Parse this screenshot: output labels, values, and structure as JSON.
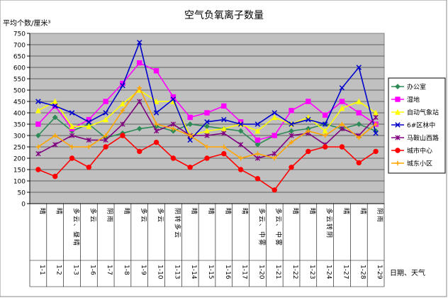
{
  "chart_data": {
    "type": "line",
    "title": "空气负氧离子数量",
    "ylabel": "平均个数/厘米³",
    "xlabel": "日期、天气",
    "ylim": [
      0,
      750
    ],
    "yticks": [
      0,
      50,
      100,
      150,
      200,
      250,
      300,
      350,
      400,
      450,
      500,
      550,
      600,
      650,
      700,
      750
    ],
    "grid": true,
    "legend_position": "right",
    "categories": [
      {
        "date": "1-1",
        "weather": "晴"
      },
      {
        "date": "1-2",
        "weather": "晴"
      },
      {
        "date": "1-3",
        "weather": "多云、昼晴"
      },
      {
        "date": "1-6",
        "weather": "多云"
      },
      {
        "date": "1-7",
        "weather": "阴雨"
      },
      {
        "date": "1-8",
        "weather": "晴"
      },
      {
        "date": "1-9",
        "weather": "多云"
      },
      {
        "date": "1-10",
        "weather": "多云"
      },
      {
        "date": "1-13",
        "weather": "阴转多云"
      },
      {
        "date": "1-14",
        "weather": "晴"
      },
      {
        "date": "1-15",
        "weather": "晴"
      },
      {
        "date": "1-16",
        "weather": "晴"
      },
      {
        "date": "1-17",
        "weather": "晴"
      },
      {
        "date": "1-20",
        "weather": "多云、中雾"
      },
      {
        "date": "1-21",
        "weather": "多云、中雾"
      },
      {
        "date": "1-22",
        "weather": "晴"
      },
      {
        "date": "1-23",
        "weather": "晴"
      },
      {
        "date": "1-24",
        "weather": "多云转阴"
      },
      {
        "date": "1-27",
        "weather": "晴"
      },
      {
        "date": "1-28",
        "weather": "晴"
      },
      {
        "date": "1-29",
        "weather": "阴雨"
      }
    ],
    "series": [
      {
        "name": "办公室",
        "color": "#2e8b57",
        "marker": "diamond",
        "values": [
          300,
          380,
          320,
          350,
          290,
          310,
          330,
          340,
          320,
          350,
          340,
          330,
          320,
          260,
          300,
          320,
          330,
          350,
          330,
          350,
          320
        ]
      },
      {
        "name": "湿地",
        "color": "#ff00ff",
        "marker": "square",
        "values": [
          350,
          430,
          330,
          370,
          450,
          530,
          620,
          585,
          470,
          380,
          400,
          430,
          360,
          280,
          300,
          410,
          450,
          390,
          450,
          400,
          350
        ]
      },
      {
        "name": "自动气象站",
        "color": "#ffff00",
        "marker": "triangle",
        "values": [
          410,
          450,
          340,
          340,
          370,
          440,
          500,
          450,
          450,
          300,
          320,
          330,
          350,
          320,
          380,
          350,
          380,
          320,
          420,
          450,
          400
        ]
      },
      {
        "name": "6#区林中",
        "color": "#0000cc",
        "marker": "x",
        "values": [
          450,
          430,
          400,
          360,
          400,
          520,
          710,
          400,
          460,
          280,
          360,
          370,
          350,
          350,
          400,
          350,
          370,
          350,
          510,
          600,
          310
        ]
      },
      {
        "name": "马鞍山西路",
        "color": "#800080",
        "marker": "star",
        "values": [
          220,
          260,
          300,
          280,
          280,
          350,
          450,
          320,
          350,
          300,
          300,
          310,
          260,
          200,
          220,
          300,
          310,
          260,
          330,
          300,
          380
        ]
      },
      {
        "name": "城市中心",
        "color": "#ff0000",
        "marker": "circle",
        "values": [
          150,
          120,
          200,
          160,
          250,
          300,
          230,
          270,
          200,
          160,
          200,
          220,
          150,
          110,
          60,
          160,
          230,
          250,
          250,
          180,
          230
        ]
      },
      {
        "name": "城东小区",
        "color": "#ffa500",
        "marker": "plus",
        "values": [
          250,
          300,
          250,
          250,
          300,
          410,
          510,
          350,
          330,
          300,
          250,
          250,
          200,
          220,
          200,
          270,
          320,
          300,
          350,
          290,
          350
        ]
      }
    ]
  }
}
